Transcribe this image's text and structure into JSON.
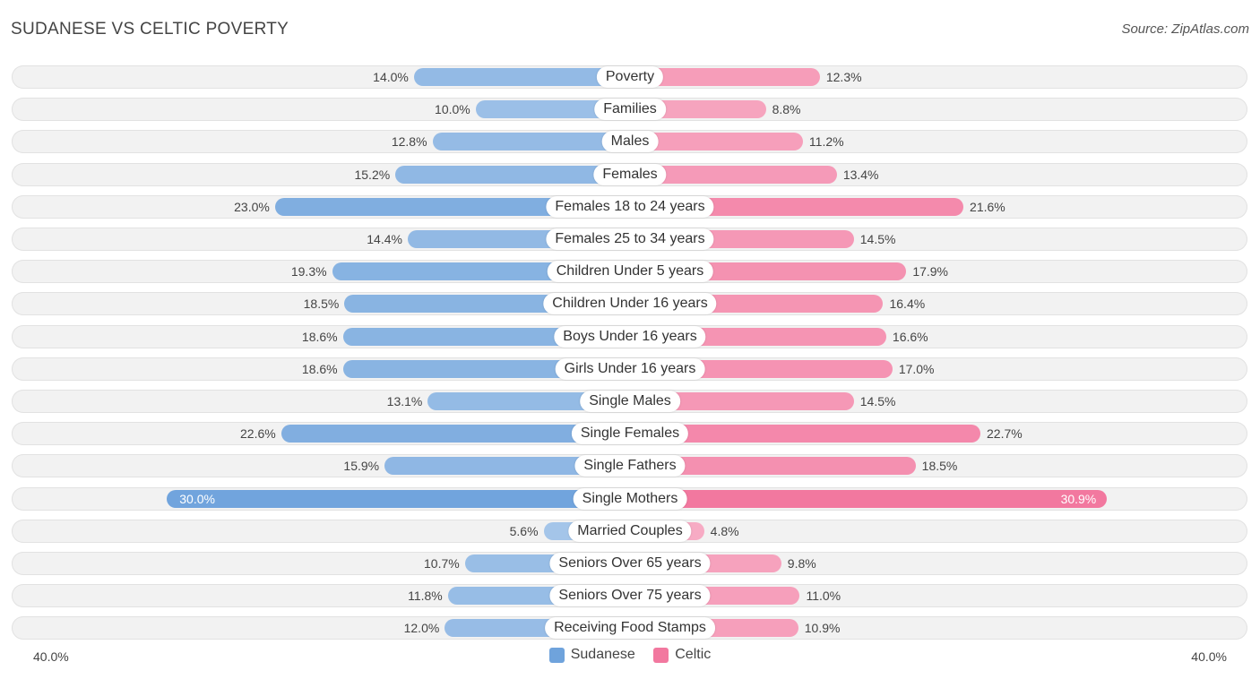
{
  "header": {
    "title": "SUDANESE VS CELTIC POVERTY",
    "source": "Source: ZipAtlas.com"
  },
  "colors": {
    "sudanese": "#6fa3dc",
    "celtic": "#f2789f"
  },
  "legend": {
    "sudanese_label": "Sudanese",
    "celtic_label": "Celtic"
  },
  "axis": {
    "left_label": "40.0%",
    "right_label": "40.0%"
  },
  "chart_data": {
    "type": "bar",
    "orientation": "horizontal-diverging",
    "title": "SUDANESE VS CELTIC POVERTY",
    "xlim": [
      -40,
      40
    ],
    "unit": "%",
    "categories": [
      "Poverty",
      "Families",
      "Males",
      "Females",
      "Females 18 to 24 years",
      "Females 25 to 34 years",
      "Children Under 5 years",
      "Children Under 16 years",
      "Boys Under 16 years",
      "Girls Under 16 years",
      "Single Males",
      "Single Females",
      "Single Fathers",
      "Single Mothers",
      "Married Couples",
      "Seniors Over 65 years",
      "Seniors Over 75 years",
      "Receiving Food Stamps"
    ],
    "series": [
      {
        "name": "Sudanese",
        "values": [
          14.0,
          10.0,
          12.8,
          15.2,
          23.0,
          14.4,
          19.3,
          18.5,
          18.6,
          18.6,
          13.1,
          22.6,
          15.9,
          30.0,
          5.6,
          10.7,
          11.8,
          12.0
        ],
        "labels": [
          "14.0%",
          "10.0%",
          "12.8%",
          "15.2%",
          "23.0%",
          "14.4%",
          "19.3%",
          "18.5%",
          "18.6%",
          "18.6%",
          "13.1%",
          "22.6%",
          "15.9%",
          "30.0%",
          "5.6%",
          "10.7%",
          "11.8%",
          "12.0%"
        ]
      },
      {
        "name": "Celtic",
        "values": [
          12.3,
          8.8,
          11.2,
          13.4,
          21.6,
          14.5,
          17.9,
          16.4,
          16.6,
          17.0,
          14.5,
          22.7,
          18.5,
          30.9,
          4.8,
          9.8,
          11.0,
          10.9
        ],
        "labels": [
          "12.3%",
          "8.8%",
          "11.2%",
          "13.4%",
          "21.6%",
          "14.5%",
          "17.9%",
          "16.4%",
          "16.6%",
          "17.0%",
          "14.5%",
          "22.7%",
          "18.5%",
          "30.9%",
          "4.8%",
          "9.8%",
          "11.0%",
          "10.9%"
        ]
      }
    ]
  }
}
